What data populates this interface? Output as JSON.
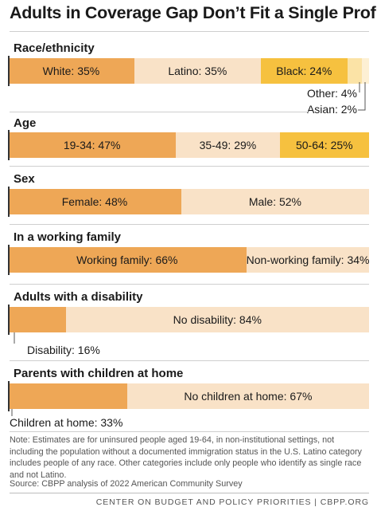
{
  "title": "Adults in Coverage Gap Don’t Fit a Single Profile",
  "colors": {
    "orange": "#eea756",
    "light": "#f9e2c7",
    "yellow": "#f6c13f",
    "pale_yellow": "#fbe3a6",
    "pale": "#fdf0d4",
    "axis": "#333333"
  },
  "chart_data": {
    "type": "bar",
    "orientation": "horizontal-stacked-100",
    "unit": "%",
    "groups": [
      {
        "title": "Race/ethnicity",
        "segments": [
          {
            "label": "White: 35%",
            "value": 35,
            "color": "#eea756"
          },
          {
            "label": "Latino: 35%",
            "value": 35,
            "color": "#f9e2c7"
          },
          {
            "label": "Black: 24%",
            "value": 24,
            "color": "#f6c13f"
          },
          {
            "label": "Other: 4%",
            "value": 4,
            "color": "#fbe3a6",
            "callout": true
          },
          {
            "label": "Asian: 2%",
            "value": 2,
            "color": "#fdf0d4",
            "callout": true
          }
        ]
      },
      {
        "title": "Age",
        "segments": [
          {
            "label": "19-34: 47%",
            "value": 47,
            "color": "#eea756"
          },
          {
            "label": "35-49: 29%",
            "value": 29,
            "color": "#f9e2c7"
          },
          {
            "label": "50-64: 25%",
            "value": 25,
            "color": "#f6c13f"
          }
        ]
      },
      {
        "title": "Sex",
        "segments": [
          {
            "label": "Female: 48%",
            "value": 48,
            "color": "#eea756"
          },
          {
            "label": "Male: 52%",
            "value": 52,
            "color": "#f9e2c7"
          }
        ]
      },
      {
        "title": "In a working family",
        "segments": [
          {
            "label": "Working family: 66%",
            "value": 66,
            "color": "#eea756"
          },
          {
            "label": "Non-working family: 34%",
            "value": 34,
            "color": "#f9e2c7"
          }
        ]
      },
      {
        "title": "Adults with a disability",
        "segments": [
          {
            "label": "Disability: 16%",
            "value": 16,
            "color": "#eea756",
            "callout": true
          },
          {
            "label": "No disability: 84%",
            "value": 84,
            "color": "#f9e2c7"
          }
        ]
      },
      {
        "title": "Parents with children at home",
        "segments": [
          {
            "label": "Children at home: 33%",
            "value": 33,
            "color": "#eea756",
            "callout": true
          },
          {
            "label": "No children at home: 67%",
            "value": 67,
            "color": "#f9e2c7"
          }
        ]
      }
    ]
  },
  "note": "Note: Estimates are for uninsured people aged 19-64, in non-institutional settings, not including the population without a documented immigration status in the U.S. Latino category includes people of any race. Other categories include only people who identify as single race and not Latino.",
  "source": "Source: CBPP analysis of 2022 American Community Survey",
  "footer": "CENTER ON BUDGET AND POLICY PRIORITIES | CBPP.ORG"
}
